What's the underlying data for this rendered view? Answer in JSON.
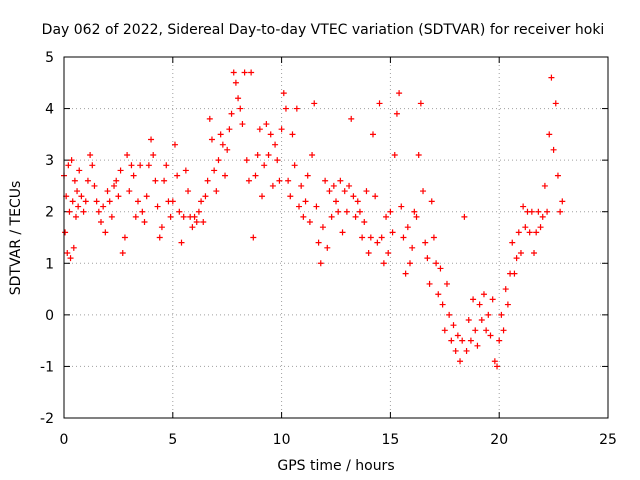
{
  "chart_data": {
    "type": "scatter",
    "title": "Day 062 of 2022, Sidereal Day-to-day VTEC variation (SDTVAR) for receiver hoki",
    "xlabel": "GPS time / hours",
    "ylabel": "SDTVAR / TECUs",
    "xlim": [
      0,
      25
    ],
    "ylim": [
      -2,
      5
    ],
    "xticks": [
      "0",
      "5",
      "10",
      "15",
      "20",
      "25"
    ],
    "yticks": [
      "-2",
      "-1",
      "0",
      "1",
      "2",
      "3",
      "4",
      "5"
    ],
    "grid": true,
    "marker": "+",
    "color": "#ff0000",
    "series": [
      {
        "name": "SDTVAR",
        "points": [
          [
            0.0,
            2.7
          ],
          [
            0.05,
            1.6
          ],
          [
            0.1,
            2.3
          ],
          [
            0.15,
            1.2
          ],
          [
            0.2,
            2.9
          ],
          [
            0.25,
            2.0
          ],
          [
            0.3,
            1.1
          ],
          [
            0.35,
            3.0
          ],
          [
            0.4,
            2.2
          ],
          [
            0.45,
            1.3
          ],
          [
            0.5,
            2.6
          ],
          [
            0.55,
            1.9
          ],
          [
            0.6,
            2.4
          ],
          [
            0.65,
            2.1
          ],
          [
            0.7,
            2.8
          ],
          [
            0.8,
            2.3
          ],
          [
            0.9,
            2.0
          ],
          [
            1.0,
            2.2
          ],
          [
            1.1,
            2.6
          ],
          [
            1.2,
            3.1
          ],
          [
            1.3,
            2.9
          ],
          [
            1.4,
            2.5
          ],
          [
            1.5,
            2.2
          ],
          [
            1.6,
            2.0
          ],
          [
            1.7,
            1.8
          ],
          [
            1.8,
            2.1
          ],
          [
            1.9,
            1.6
          ],
          [
            2.0,
            2.4
          ],
          [
            2.1,
            2.2
          ],
          [
            2.2,
            1.9
          ],
          [
            2.3,
            2.5
          ],
          [
            2.4,
            2.6
          ],
          [
            2.5,
            2.3
          ],
          [
            2.6,
            2.8
          ],
          [
            2.7,
            1.2
          ],
          [
            2.8,
            1.5
          ],
          [
            2.9,
            3.1
          ],
          [
            3.0,
            2.4
          ],
          [
            3.1,
            2.9
          ],
          [
            3.2,
            2.7
          ],
          [
            3.3,
            1.9
          ],
          [
            3.4,
            2.2
          ],
          [
            3.5,
            2.9
          ],
          [
            3.6,
            2.0
          ],
          [
            3.7,
            1.8
          ],
          [
            3.8,
            2.3
          ],
          [
            3.9,
            2.9
          ],
          [
            4.0,
            3.4
          ],
          [
            4.1,
            3.1
          ],
          [
            4.2,
            2.6
          ],
          [
            4.3,
            2.1
          ],
          [
            4.4,
            1.5
          ],
          [
            4.5,
            1.7
          ],
          [
            4.6,
            2.6
          ],
          [
            4.7,
            2.9
          ],
          [
            4.8,
            2.2
          ],
          [
            4.9,
            1.9
          ],
          [
            5.0,
            2.2
          ],
          [
            5.1,
            3.3
          ],
          [
            5.2,
            2.7
          ],
          [
            5.3,
            2.0
          ],
          [
            5.4,
            1.4
          ],
          [
            5.5,
            1.9
          ],
          [
            5.6,
            2.8
          ],
          [
            5.7,
            2.4
          ],
          [
            5.8,
            1.9
          ],
          [
            5.9,
            1.7
          ],
          [
            6.0,
            1.9
          ],
          [
            6.1,
            1.8
          ],
          [
            6.2,
            2.0
          ],
          [
            6.3,
            2.2
          ],
          [
            6.4,
            1.8
          ],
          [
            6.5,
            2.3
          ],
          [
            6.6,
            2.6
          ],
          [
            6.7,
            3.8
          ],
          [
            6.8,
            3.4
          ],
          [
            6.9,
            2.8
          ],
          [
            7.0,
            2.4
          ],
          [
            7.1,
            3.0
          ],
          [
            7.2,
            3.5
          ],
          [
            7.3,
            3.3
          ],
          [
            7.4,
            2.7
          ],
          [
            7.5,
            3.2
          ],
          [
            7.6,
            3.6
          ],
          [
            7.7,
            3.9
          ],
          [
            7.8,
            4.7
          ],
          [
            7.9,
            4.5
          ],
          [
            8.0,
            4.2
          ],
          [
            8.1,
            4.0
          ],
          [
            8.2,
            3.7
          ],
          [
            8.3,
            4.7
          ],
          [
            8.4,
            3.0
          ],
          [
            8.5,
            2.6
          ],
          [
            8.6,
            4.7
          ],
          [
            8.7,
            1.5
          ],
          [
            8.8,
            2.7
          ],
          [
            8.9,
            3.1
          ],
          [
            9.0,
            3.6
          ],
          [
            9.1,
            2.3
          ],
          [
            9.2,
            2.9
          ],
          [
            9.3,
            3.7
          ],
          [
            9.4,
            3.1
          ],
          [
            9.5,
            3.5
          ],
          [
            9.6,
            2.5
          ],
          [
            9.7,
            3.3
          ],
          [
            9.8,
            3.0
          ],
          [
            9.9,
            2.6
          ],
          [
            10.0,
            3.6
          ],
          [
            10.1,
            4.3
          ],
          [
            10.2,
            4.0
          ],
          [
            10.3,
            2.6
          ],
          [
            10.4,
            2.3
          ],
          [
            10.5,
            3.5
          ],
          [
            10.6,
            2.9
          ],
          [
            10.7,
            4.0
          ],
          [
            10.8,
            2.1
          ],
          [
            10.9,
            2.5
          ],
          [
            11.0,
            1.9
          ],
          [
            11.1,
            2.2
          ],
          [
            11.2,
            2.7
          ],
          [
            11.3,
            1.8
          ],
          [
            11.4,
            3.1
          ],
          [
            11.5,
            4.1
          ],
          [
            11.6,
            2.1
          ],
          [
            11.7,
            1.4
          ],
          [
            11.8,
            1.0
          ],
          [
            11.9,
            1.7
          ],
          [
            12.0,
            2.6
          ],
          [
            12.1,
            1.3
          ],
          [
            12.2,
            2.4
          ],
          [
            12.3,
            1.9
          ],
          [
            12.4,
            2.5
          ],
          [
            12.5,
            2.2
          ],
          [
            12.6,
            2.0
          ],
          [
            12.7,
            2.6
          ],
          [
            12.8,
            1.6
          ],
          [
            12.9,
            2.4
          ],
          [
            13.0,
            2.0
          ],
          [
            13.1,
            2.5
          ],
          [
            13.2,
            3.8
          ],
          [
            13.3,
            2.3
          ],
          [
            13.4,
            1.9
          ],
          [
            13.5,
            2.2
          ],
          [
            13.6,
            2.0
          ],
          [
            13.7,
            1.5
          ],
          [
            13.8,
            1.8
          ],
          [
            13.9,
            2.4
          ],
          [
            14.0,
            1.2
          ],
          [
            14.1,
            1.5
          ],
          [
            14.2,
            3.5
          ],
          [
            14.3,
            2.3
          ],
          [
            14.4,
            1.4
          ],
          [
            14.5,
            4.1
          ],
          [
            14.6,
            1.5
          ],
          [
            14.7,
            1.0
          ],
          [
            14.8,
            1.9
          ],
          [
            14.9,
            1.2
          ],
          [
            15.0,
            2.0
          ],
          [
            15.1,
            1.6
          ],
          [
            15.2,
            3.1
          ],
          [
            15.3,
            3.9
          ],
          [
            15.4,
            4.3
          ],
          [
            15.5,
            2.1
          ],
          [
            15.6,
            1.5
          ],
          [
            15.7,
            0.8
          ],
          [
            15.8,
            1.7
          ],
          [
            15.9,
            1.0
          ],
          [
            16.0,
            1.3
          ],
          [
            16.1,
            2.0
          ],
          [
            16.2,
            1.9
          ],
          [
            16.3,
            3.1
          ],
          [
            16.4,
            4.1
          ],
          [
            16.5,
            2.4
          ],
          [
            16.6,
            1.4
          ],
          [
            16.7,
            1.1
          ],
          [
            16.8,
            0.6
          ],
          [
            16.9,
            2.2
          ],
          [
            17.0,
            1.5
          ],
          [
            17.1,
            1.0
          ],
          [
            17.2,
            0.4
          ],
          [
            17.3,
            0.9
          ],
          [
            17.4,
            0.2
          ],
          [
            17.5,
            -0.3
          ],
          [
            17.6,
            0.6
          ],
          [
            17.7,
            0.0
          ],
          [
            17.8,
            -0.5
          ],
          [
            17.9,
            -0.2
          ],
          [
            18.0,
            -0.7
          ],
          [
            18.1,
            -0.4
          ],
          [
            18.2,
            -0.9
          ],
          [
            18.3,
            -0.5
          ],
          [
            18.4,
            1.9
          ],
          [
            18.5,
            -0.7
          ],
          [
            18.6,
            -0.1
          ],
          [
            18.7,
            -0.5
          ],
          [
            18.8,
            0.3
          ],
          [
            18.9,
            -0.3
          ],
          [
            19.0,
            -0.6
          ],
          [
            19.1,
            0.2
          ],
          [
            19.2,
            -0.1
          ],
          [
            19.3,
            0.4
          ],
          [
            19.4,
            -0.3
          ],
          [
            19.5,
            0.0
          ],
          [
            19.6,
            -0.4
          ],
          [
            19.7,
            0.3
          ],
          [
            19.8,
            -0.9
          ],
          [
            19.9,
            -1.0
          ],
          [
            20.0,
            -0.5
          ],
          [
            20.1,
            0.0
          ],
          [
            20.2,
            -0.3
          ],
          [
            20.3,
            0.5
          ],
          [
            20.4,
            0.2
          ],
          [
            20.5,
            0.8
          ],
          [
            20.6,
            1.4
          ],
          [
            20.7,
            0.8
          ],
          [
            20.8,
            1.1
          ],
          [
            20.9,
            1.6
          ],
          [
            21.0,
            1.2
          ],
          [
            21.1,
            2.1
          ],
          [
            21.2,
            1.7
          ],
          [
            21.3,
            2.0
          ],
          [
            21.4,
            1.6
          ],
          [
            21.5,
            2.0
          ],
          [
            21.6,
            1.2
          ],
          [
            21.7,
            1.6
          ],
          [
            21.8,
            2.0
          ],
          [
            21.9,
            1.7
          ],
          [
            22.0,
            1.9
          ],
          [
            22.1,
            2.5
          ],
          [
            22.2,
            2.0
          ],
          [
            22.3,
            3.5
          ],
          [
            22.4,
            4.6
          ],
          [
            22.5,
            3.2
          ],
          [
            22.6,
            4.1
          ],
          [
            22.7,
            2.7
          ],
          [
            22.8,
            2.0
          ],
          [
            22.9,
            2.2
          ]
        ]
      }
    ]
  }
}
